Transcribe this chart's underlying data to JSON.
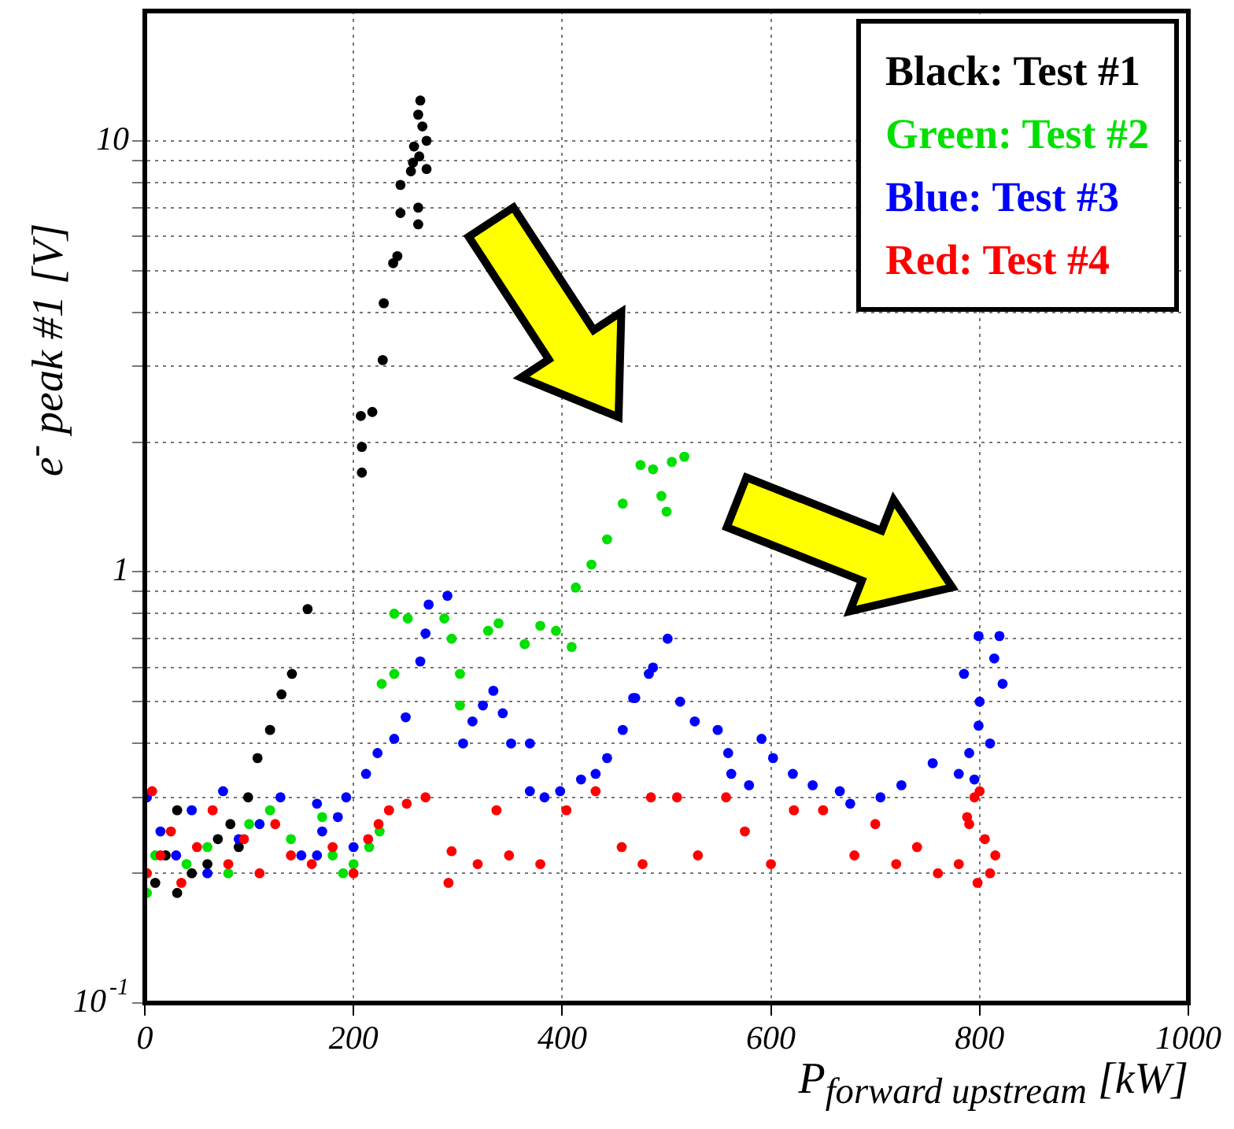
{
  "chart_data": {
    "type": "scatter",
    "xlabel": "P$_{forward upstream}$ [kW]",
    "ylabel": "e$^{-}$ peak #1 [V]",
    "log": "y",
    "grid": true,
    "legend": "top right",
    "marker": "circle",
    "xlim": [
      0,
      1000
    ],
    "xticks": [
      0,
      200,
      400,
      600,
      800,
      1000
    ],
    "ylim": [
      0.1,
      20
    ],
    "yticks": [
      {
        "value": 0.1,
        "label": "10$^{-1}$"
      },
      {
        "value": 0.2,
        "label": null
      },
      {
        "value": 0.3,
        "label": null
      },
      {
        "value": 0.4,
        "label": null
      },
      {
        "value": 0.5,
        "label": null
      },
      {
        "value": 0.6,
        "label": null
      },
      {
        "value": 0.7,
        "label": null
      },
      {
        "value": 0.8,
        "label": null
      },
      {
        "value": 0.9,
        "label": null
      },
      1,
      {
        "value": 2,
        "label": null
      },
      {
        "value": 3,
        "label": null
      },
      {
        "value": 4,
        "label": null
      },
      {
        "value": 5,
        "label": null
      },
      {
        "value": 6,
        "label": null
      },
      {
        "value": 7,
        "label": null
      },
      {
        "value": 8,
        "label": null
      },
      {
        "value": 9,
        "label": null
      },
      10
    ],
    "series": [
      {
        "name": "Black: Test #1",
        "color": "#000000",
        "x": [
          264,
          262,
          266,
          270,
          258,
          263,
          257,
          255,
          270,
          245,
          245,
          262,
          262,
          238,
          242,
          229,
          228,
          207,
          218,
          208,
          208,
          156,
          141,
          131,
          120,
          108,
          99,
          82,
          31,
          31,
          20,
          45,
          60,
          70,
          10,
          90
        ],
        "values": [
          12.4,
          11.5,
          10.8,
          10,
          9.7,
          9.2,
          8.9,
          8.5,
          8.6,
          7.9,
          6.8,
          7.0,
          6.4,
          5.2,
          5.4,
          4.2,
          3.1,
          2.3,
          2.35,
          1.95,
          1.7,
          0.82,
          0.58,
          0.52,
          0.43,
          0.37,
          0.3,
          0.26,
          0.28,
          0.18,
          0.22,
          0.2,
          0.21,
          0.24,
          0.19,
          0.23
        ]
      },
      {
        "name": "Green: Test #2",
        "color": "#00e000",
        "x": [
          2,
          10,
          25,
          40,
          60,
          80,
          100,
          120,
          140,
          160,
          180,
          200,
          215,
          225,
          190,
          170,
          227,
          239,
          239,
          252,
          269,
          287,
          294,
          302,
          302,
          329,
          339,
          364,
          379,
          394,
          409,
          413,
          428,
          443,
          458,
          475,
          487,
          500,
          517,
          505,
          495
        ],
        "values": [
          0.18,
          0.22,
          null,
          0.21,
          0.23,
          0.2,
          0.26,
          0.28,
          0.24,
          null,
          0.22,
          0.21,
          0.23,
          0.25,
          0.2,
          0.27,
          0.55,
          0.58,
          0.8,
          0.78,
          null,
          0.78,
          0.7,
          0.58,
          0.49,
          0.73,
          0.76,
          0.68,
          0.75,
          0.73,
          0.67,
          0.92,
          1.04,
          1.19,
          1.44,
          1.77,
          1.73,
          1.38,
          1.85,
          1.8,
          1.5
        ]
      },
      {
        "name": "Blue: Test #3",
        "color": "#0000ff",
        "x": [
          2,
          15,
          30,
          45,
          60,
          75,
          90,
          110,
          130,
          150,
          170,
          185,
          200,
          165,
          165,
          193,
          212,
          223,
          239,
          250,
          264,
          269,
          272,
          290,
          305,
          314,
          324,
          334,
          343,
          351,
          369,
          369,
          383,
          398,
          418,
          432,
          443,
          458,
          470,
          483,
          501,
          487,
          468,
          513,
          527,
          549,
          559,
          562,
          579,
          591,
          602,
          621,
          640,
          666,
          676,
          705,
          725,
          755,
          780,
          785,
          799,
          819,
          814,
          822,
          799,
          795,
          810,
          790,
          800
        ],
        "values": [
          0.3,
          0.25,
          0.22,
          0.28,
          0.2,
          0.31,
          0.24,
          0.26,
          0.3,
          0.22,
          0.25,
          0.27,
          0.23,
          0.29,
          0.22,
          0.3,
          0.34,
          0.38,
          0.41,
          0.46,
          0.62,
          0.72,
          0.84,
          0.88,
          0.4,
          0.45,
          0.49,
          0.53,
          0.47,
          0.4,
          0.4,
          0.31,
          0.3,
          0.31,
          0.33,
          0.34,
          0.37,
          0.43,
          0.51,
          0.58,
          0.7,
          0.6,
          0.51,
          0.5,
          0.45,
          0.43,
          0.38,
          0.34,
          0.32,
          0.41,
          0.37,
          0.34,
          0.32,
          0.31,
          0.29,
          0.3,
          0.32,
          0.36,
          0.34,
          0.58,
          0.71,
          0.71,
          0.63,
          0.55,
          0.44,
          0.33,
          0.4,
          0.38,
          0.5
        ]
      },
      {
        "name": "Red: Test #4",
        "color": "#ff0000",
        "x": [
          2,
          7,
          15,
          25,
          35,
          50,
          65,
          80,
          95,
          110,
          125,
          140,
          160,
          180,
          200,
          214,
          224,
          234,
          251,
          269,
          291,
          294,
          319,
          337,
          349,
          379,
          404,
          432,
          457,
          477,
          485,
          510,
          530,
          557,
          575,
          600,
          622,
          650,
          680,
          700,
          720,
          740,
          760,
          780,
          790,
          795,
          800,
          805,
          810,
          815,
          798,
          788
        ],
        "values": [
          0.2,
          0.31,
          0.22,
          0.25,
          0.19,
          0.23,
          0.28,
          0.21,
          0.24,
          0.2,
          0.26,
          0.22,
          0.21,
          0.23,
          0.2,
          0.24,
          0.26,
          0.28,
          0.29,
          0.3,
          0.19,
          0.225,
          0.21,
          0.28,
          0.22,
          0.21,
          0.28,
          0.31,
          0.23,
          0.21,
          0.3,
          0.3,
          0.22,
          0.3,
          0.25,
          0.21,
          0.28,
          0.28,
          0.22,
          0.26,
          0.21,
          0.23,
          0.2,
          0.21,
          0.26,
          0.3,
          0.31,
          0.24,
          0.2,
          0.22,
          0.19,
          0.27
        ]
      }
    ]
  }
}
